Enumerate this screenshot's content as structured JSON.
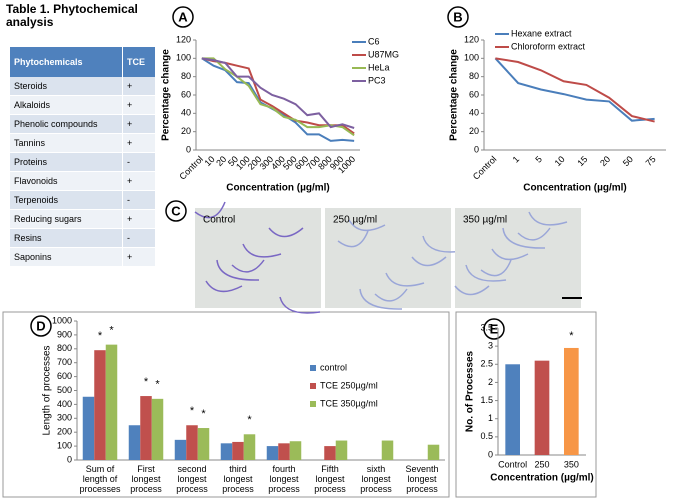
{
  "table": {
    "title": "Table 1. Phytochemical analysis",
    "header": [
      "Phytochemicals",
      "TCE"
    ],
    "rows": [
      [
        "Steroids",
        "+"
      ],
      [
        "Alkaloids",
        "+"
      ],
      [
        "Phenolic compounds",
        "+"
      ],
      [
        "Tannins",
        "+"
      ],
      [
        "Proteins",
        "-"
      ],
      [
        "Flavonoids",
        "+"
      ],
      [
        "Terpenoids",
        "-"
      ],
      [
        "Reducing sugars",
        "+"
      ],
      [
        "Resins",
        "-"
      ],
      [
        "Saponins",
        "+"
      ]
    ]
  },
  "figure_c": {
    "panel": "C",
    "images": [
      "Control",
      "250 µg/ml",
      "350 µg/ml"
    ]
  },
  "chart_data": [
    {
      "panel": "A",
      "type": "line",
      "x_label": "Concentration (µg/ml)",
      "y_label": "Percentage change",
      "categories": [
        "Control",
        "10",
        "20",
        "50",
        "100",
        "200",
        "300",
        "400",
        "500",
        "600",
        "700",
        "800",
        "900",
        "1000"
      ],
      "series": [
        {
          "name": "C6",
          "color": "#4a7ebb",
          "values": [
            100,
            92,
            87,
            74,
            73,
            52,
            45,
            38,
            30,
            17,
            17,
            10,
            11,
            10
          ]
        },
        {
          "name": "U87MG",
          "color": "#be4b48",
          "values": [
            100,
            97,
            95,
            92,
            89,
            55,
            48,
            40,
            32,
            30,
            27,
            27,
            27,
            18
          ]
        },
        {
          "name": "HeLa",
          "color": "#98b954",
          "values": [
            100,
            100,
            88,
            80,
            70,
            50,
            46,
            36,
            33,
            25,
            25,
            27,
            25,
            16
          ]
        },
        {
          "name": "PC3",
          "color": "#7d60a0",
          "values": [
            100,
            98,
            95,
            80,
            80,
            68,
            60,
            56,
            50,
            38,
            40,
            25,
            28,
            24
          ]
        }
      ],
      "ylim": [
        0,
        120
      ],
      "yticks": [
        0,
        20,
        40,
        60,
        80,
        100,
        120
      ],
      "legend": "top-right"
    },
    {
      "panel": "B",
      "type": "line",
      "x_label": "Concentration (µg/ml)",
      "y_label": "Percentage change",
      "categories": [
        "Control",
        "1",
        "5",
        "10",
        "15",
        "20",
        "50",
        "75"
      ],
      "series": [
        {
          "name": "Hexane extract",
          "color": "#4a7ebb",
          "values": [
            100,
            73,
            66,
            61,
            55,
            53,
            32,
            34
          ]
        },
        {
          "name": "Chloroform extract",
          "color": "#be4b48",
          "values": [
            100,
            96,
            87,
            75,
            71,
            57,
            37,
            31
          ]
        }
      ],
      "ylim": [
        0,
        120
      ],
      "yticks": [
        0,
        20,
        40,
        60,
        80,
        100,
        120
      ],
      "legend": "top"
    },
    {
      "panel": "D",
      "type": "bar",
      "y_label": "Length of processes",
      "categories": [
        "Sum of\nlength of\nprocesses",
        "First\nlongest\nprocess",
        "second\nlongest\nprocess",
        "third\nlongest\nprocess",
        "fourth\nlongest\nprocess",
        "Fifth\nlongest\nprocess",
        "sixth\nlongest\nprocess",
        "Seventh\nlongest\nprocess"
      ],
      "series": [
        {
          "name": "control",
          "color": "#4f81bd",
          "values": [
            455,
            250,
            145,
            120,
            100,
            null,
            null,
            null
          ],
          "markers": [
            null,
            null,
            null,
            null,
            null,
            null,
            null,
            null
          ]
        },
        {
          "name": "TCE 250µg/ml",
          "color": "#c0504d",
          "values": [
            790,
            460,
            250,
            130,
            120,
            100,
            null,
            null
          ],
          "markers": [
            "*",
            "*",
            "*",
            null,
            null,
            null,
            null,
            null
          ]
        },
        {
          "name": "TCE 350µg/ml",
          "color": "#9bbb59",
          "values": [
            830,
            440,
            230,
            185,
            135,
            140,
            140,
            110
          ],
          "markers": [
            "*",
            "*",
            "*",
            "*",
            null,
            null,
            null,
            null
          ]
        }
      ],
      "ylim": [
        0,
        1000
      ],
      "yticks": [
        0,
        100,
        200,
        300,
        400,
        500,
        600,
        700,
        800,
        900,
        1000
      ],
      "legend": "right"
    },
    {
      "panel": "E",
      "type": "bar",
      "x_label": "Concentration  (µg/ml)",
      "y_label": "No. of Processes",
      "categories": [
        "Control",
        "250",
        "350"
      ],
      "values": [
        2.5,
        2.6,
        2.95
      ],
      "colors": [
        "#4f81bd",
        "#c0504d",
        "#f79646"
      ],
      "markers": [
        null,
        null,
        "*"
      ],
      "ylim": [
        0,
        3.5
      ],
      "yticks": [
        0,
        0.5,
        1,
        1.5,
        2,
        2.5,
        3,
        3.5
      ]
    }
  ]
}
